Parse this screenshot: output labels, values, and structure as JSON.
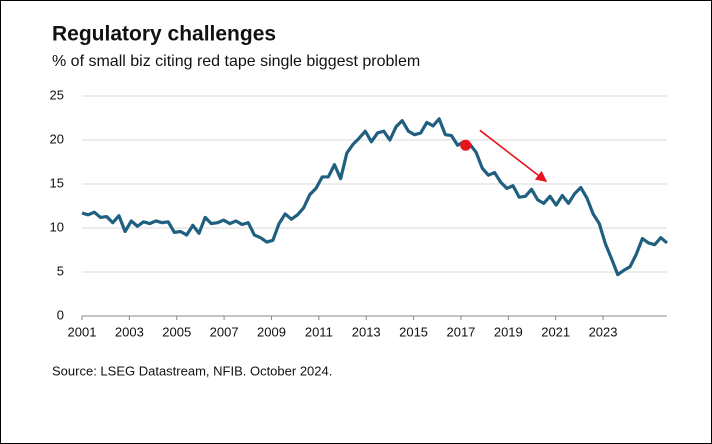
{
  "chart_data": {
    "type": "line",
    "title": "Regulatory challenges",
    "subtitle": "% of small biz citing red tape single biggest problem",
    "source": "Source: LSEG Datastream, NFIB. October 2024.",
    "x": [
      2001,
      2001.26,
      2001.52,
      2001.78,
      2002.04,
      2002.3,
      2002.56,
      2002.82,
      2003.08,
      2003.34,
      2003.6,
      2003.86,
      2004.12,
      2004.38,
      2004.64,
      2004.9,
      2005.16,
      2005.42,
      2005.68,
      2005.94,
      2006.2,
      2006.46,
      2006.72,
      2006.98,
      2007.24,
      2007.5,
      2007.76,
      2008.02,
      2008.28,
      2008.54,
      2008.8,
      2009.06,
      2009.32,
      2009.58,
      2009.84,
      2010.1,
      2010.36,
      2010.62,
      2010.88,
      2011.14,
      2011.4,
      2011.66,
      2011.92,
      2012.18,
      2012.44,
      2012.7,
      2012.96,
      2013.22,
      2013.48,
      2013.74,
      2014.0,
      2014.26,
      2014.52,
      2014.78,
      2015.04,
      2015.3,
      2015.56,
      2015.82,
      2016.08,
      2016.34,
      2016.6,
      2016.86,
      2017.12,
      2017.38,
      2017.64,
      2017.9,
      2018.16,
      2018.42,
      2018.68,
      2018.94,
      2019.2,
      2019.46,
      2019.72,
      2019.98,
      2020.24,
      2020.5,
      2020.76,
      2021.02,
      2021.28,
      2021.54,
      2021.8,
      2022.06,
      2022.32,
      2022.58,
      2022.84,
      2023.1,
      2023.36,
      2023.62,
      2023.88,
      2024.14,
      2024.4,
      2024.66,
      2024.92,
      2025.18,
      2025.44,
      2025.7
    ],
    "series": [
      {
        "name": "Red tape",
        "color": "#1f5f7f",
        "values": [
          11.7,
          11.5,
          11.8,
          11.2,
          11.3,
          10.6,
          11.4,
          9.6,
          10.8,
          10.2,
          10.7,
          10.5,
          10.8,
          10.6,
          10.7,
          9.5,
          9.6,
          9.2,
          10.3,
          9.4,
          11.2,
          10.5,
          10.6,
          10.9,
          10.5,
          10.8,
          10.4,
          10.6,
          9.2,
          8.9,
          8.4,
          8.6,
          10.5,
          11.6,
          11.0,
          11.5,
          12.3,
          13.8,
          14.5,
          15.8,
          15.8,
          17.2,
          15.6,
          18.5,
          19.5,
          20.2,
          21.0,
          19.8,
          20.8,
          21.0,
          20.0,
          21.5,
          22.2,
          21.0,
          20.6,
          20.8,
          22.0,
          21.6,
          22.4,
          20.6,
          20.5,
          19.4,
          19.8,
          19.5,
          18.6,
          16.8,
          16.0,
          16.3,
          15.2,
          14.5,
          14.8,
          13.5,
          13.6,
          14.4,
          13.2,
          12.8,
          13.6,
          12.6,
          13.7,
          12.8,
          13.9,
          14.6,
          13.4,
          11.6,
          10.5,
          8.2,
          6.5,
          4.7,
          5.2,
          5.6,
          7.0,
          8.8,
          8.3,
          8.1,
          8.9,
          8.3
        ]
      }
    ],
    "xlim": [
      2001,
      2025.7
    ],
    "xticks": [
      2001,
      2003,
      2005,
      2007,
      2009,
      2011,
      2013,
      2015,
      2017,
      2019,
      2021,
      2023
    ],
    "ylim": [
      0,
      25
    ],
    "yticks": [
      0,
      5,
      10,
      15,
      20,
      25
    ],
    "grid": true,
    "markers": [
      {
        "x": 2017.2,
        "y": 19.4,
        "color": "#e8141c"
      }
    ],
    "arrows": [
      {
        "x1": 2017.8,
        "y1": 21.1,
        "x2": 2020.6,
        "y2": 15.3,
        "color": "#e8141c"
      }
    ]
  }
}
